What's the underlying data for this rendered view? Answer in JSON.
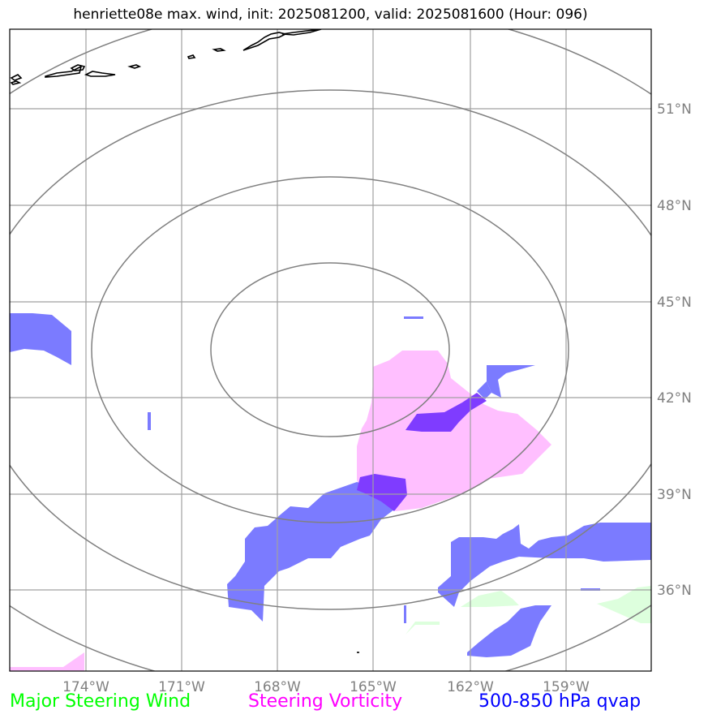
{
  "title": "henriette08e max. wind, init: 2025081200, valid: 2025081600 (Hour: 096)",
  "map": {
    "lat_labels": [
      "51°N",
      "48°N",
      "45°N",
      "42°N",
      "39°N",
      "36°N"
    ],
    "lon_labels": [
      "174°W",
      "171°W",
      "168°W",
      "165°W",
      "162°W",
      "159°W"
    ],
    "colors": {
      "qvap": "#7b7bff",
      "qvap_dark": "#7f3cff",
      "vorticity": "#ffbfff",
      "wind": "#ddffdd",
      "grid": "#a0a0a0",
      "rings": "#808080",
      "coast": "#000000"
    }
  },
  "legend": {
    "wind": {
      "label": "Major Steering Wind",
      "color": "#00ff00"
    },
    "vorticity": {
      "label": "Steering Vorticity",
      "color": "#ff00ff"
    },
    "qvap": {
      "label": "500-850 hPa qvap",
      "color": "#0000ff"
    }
  }
}
